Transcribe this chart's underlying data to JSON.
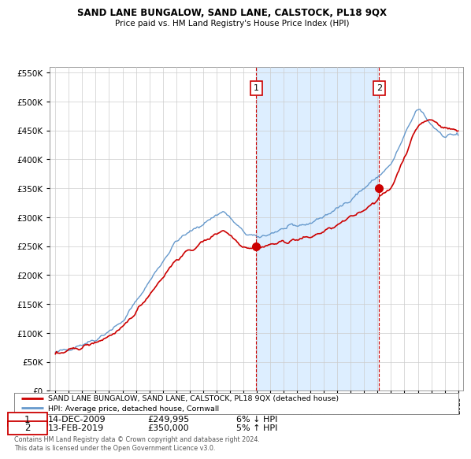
{
  "title": "SAND LANE BUNGALOW, SAND LANE, CALSTOCK, PL18 9QX",
  "subtitle": "Price paid vs. HM Land Registry's House Price Index (HPI)",
  "legend_line1": "SAND LANE BUNGALOW, SAND LANE, CALSTOCK, PL18 9QX (detached house)",
  "legend_line2": "HPI: Average price, detached house, Cornwall",
  "annotation1_date": "14-DEC-2009",
  "annotation1_price": "£249,995",
  "annotation1_info": "6% ↓ HPI",
  "annotation2_date": "13-FEB-2019",
  "annotation2_price": "£350,000",
  "annotation2_info": "5% ↑ HPI",
  "footer": "Contains HM Land Registry data © Crown copyright and database right 2024.\nThis data is licensed under the Open Government Licence v3.0.",
  "red_color": "#cc0000",
  "blue_color": "#6699cc",
  "bg_color": "#ffffff",
  "shade_color": "#ddeeff",
  "grid_color": "#cccccc",
  "ylim": [
    0,
    560000
  ],
  "yticks": [
    0,
    50000,
    100000,
    150000,
    200000,
    250000,
    300000,
    350000,
    400000,
    450000,
    500000,
    550000
  ],
  "sale1_x": 2009.96,
  "sale1_y": 249995,
  "sale2_x": 2019.12,
  "sale2_y": 350000,
  "xlim_min": 1994.6,
  "xlim_max": 2025.4
}
